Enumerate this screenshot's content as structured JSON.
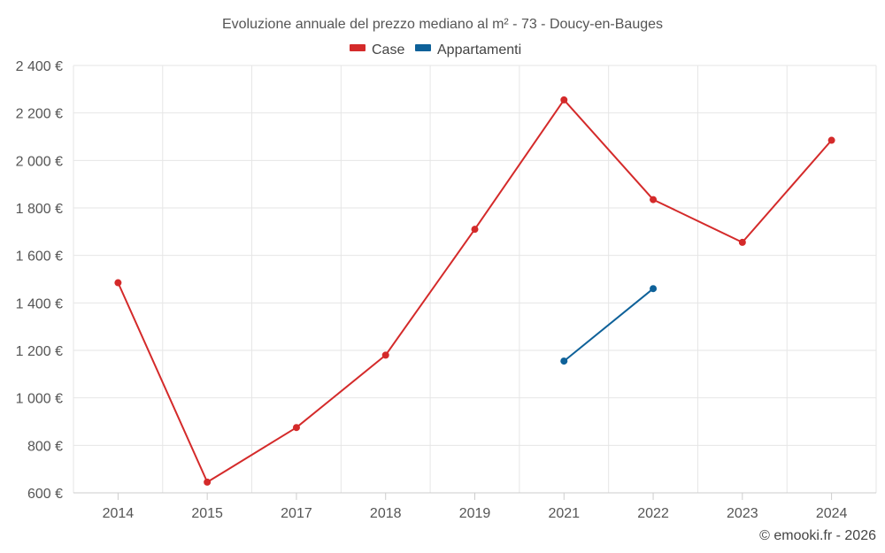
{
  "chart_data": {
    "type": "line",
    "title": "Evoluzione annuale del prezzo mediano al m² - 73 - Doucy-en-Bauges",
    "categories": [
      "2014",
      "2015",
      "2017",
      "2018",
      "2019",
      "2021",
      "2022",
      "2023",
      "2024"
    ],
    "ylim": [
      600,
      2400
    ],
    "yticks": [
      600,
      800,
      1000,
      1200,
      1400,
      1600,
      1800,
      2000,
      2200,
      2400
    ],
    "ytick_labels": [
      "600 €",
      "800 €",
      "1 000 €",
      "1 200 €",
      "1 400 €",
      "1 600 €",
      "1 800 €",
      "2 000 €",
      "2 200 €",
      "2 400 €"
    ],
    "grid": true,
    "legend_position": "top-center",
    "series": [
      {
        "name": "Case",
        "color": "#d42a2a",
        "values": [
          1485,
          645,
          875,
          1180,
          1710,
          2255,
          1835,
          1655,
          2085
        ]
      },
      {
        "name": "Appartamenti",
        "color": "#0e6199",
        "values": [
          null,
          null,
          null,
          null,
          null,
          1155,
          1460,
          null,
          null
        ]
      }
    ],
    "credit": "© emooki.fr - 2026"
  }
}
